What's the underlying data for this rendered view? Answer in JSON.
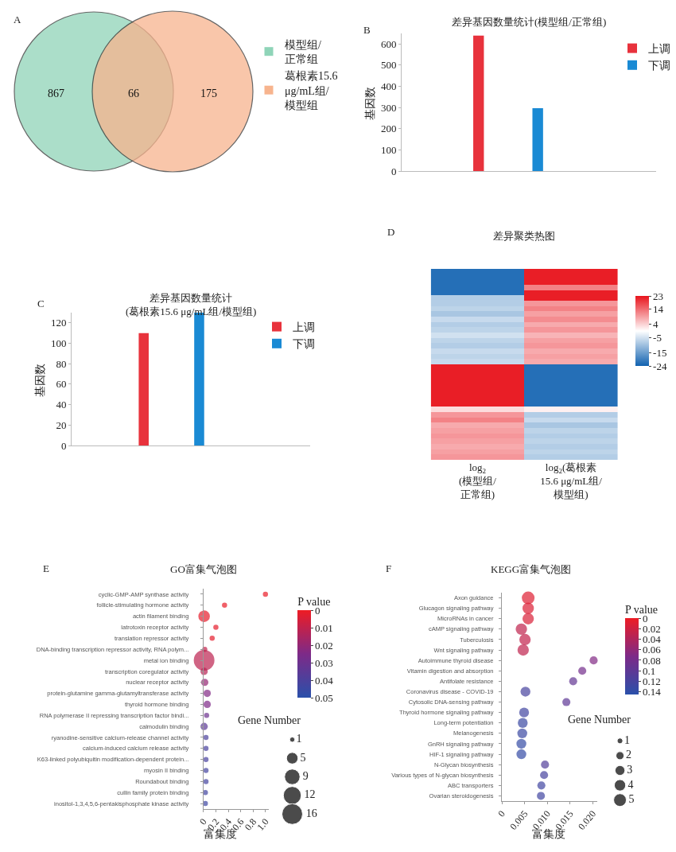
{
  "chart_data": [
    {
      "type": "other",
      "annotations": [
        "A",
        "867",
        "66",
        "175"
      ],
      "legend": "right",
      "series": [
        {
          "name": "模型组/\n正常组",
          "color": "#8fd4b8"
        },
        {
          "name": "葛根素15.6\nμg/mL组/\n模型组",
          "color": "#f7b48e"
        }
      ]
    },
    {
      "type": "bar",
      "title": "差异基因数量统计(模型组/正常组)",
      "annotations": [
        "B"
      ],
      "ylabel": "基因数",
      "categories": [
        null,
        null
      ],
      "series": [
        {
          "name": "上调",
          "color": "#e8323c",
          "values": [
            640,
            null
          ]
        },
        {
          "name": "下调",
          "color": "#1a8ad4",
          "values": [
            null,
            297
          ]
        }
      ],
      "ylim": [
        0,
        650
      ],
      "yticks": [
        0,
        100,
        200,
        300,
        400,
        500,
        600
      ],
      "tick_labels": "y",
      "legend": "top right"
    },
    {
      "type": "bar",
      "title": "差异基因数量统计\n(葛根素15.6 μg/mL组/模型组)",
      "annotations": [
        "C"
      ],
      "ylabel": "基因数",
      "categories": [
        null,
        null
      ],
      "series": [
        {
          "name": "上调",
          "color": "#e8323c",
          "values": [
            110,
            null
          ]
        },
        {
          "name": "下调",
          "color": "#1a8ad4",
          "values": [
            null,
            130
          ]
        }
      ],
      "ylim": [
        0,
        130
      ],
      "yticks": [
        0,
        20,
        40,
        60,
        80,
        100,
        120
      ],
      "tick_labels": "y",
      "legend": "top right"
    },
    {
      "type": "heatmap",
      "title": "差异聚类热图",
      "annotations": [
        "D"
      ],
      "categories": [
        "log$_{2}$\n(模型组/\n正常组)",
        "log$_{2}$(葛根素\n15.6 μg/mL组/\n模型组)"
      ],
      "y_categories": [
        null,
        null,
        null,
        null,
        null,
        null,
        null,
        null,
        null,
        null,
        null,
        null,
        null,
        null,
        null,
        null,
        null,
        null,
        null,
        null,
        null,
        null,
        null,
        null,
        null,
        null,
        null,
        null,
        null,
        null,
        null,
        null,
        null,
        null,
        null,
        null
      ],
      "cells": [
        [
          -22,
          22
        ],
        [
          -22,
          22
        ],
        [
          -22,
          22
        ],
        [
          -22,
          12
        ],
        [
          -22,
          22
        ],
        [
          -8,
          22
        ],
        [
          -8,
          10
        ],
        [
          -7,
          12
        ],
        [
          -9,
          9
        ],
        [
          -6,
          11
        ],
        [
          -8,
          8
        ],
        [
          -7,
          10
        ],
        [
          -5,
          7
        ],
        [
          -7,
          9
        ],
        [
          -8,
          10
        ],
        [
          -6,
          8
        ],
        [
          -7,
          9
        ],
        [
          -6,
          8
        ],
        [
          22,
          -22
        ],
        [
          22,
          -22
        ],
        [
          22,
          -22
        ],
        [
          22,
          -22
        ],
        [
          22,
          -22
        ],
        [
          22,
          -22
        ],
        [
          22,
          -22
        ],
        [
          22,
          -22
        ],
        [
          3,
          1
        ],
        [
          10,
          -8
        ],
        [
          12,
          -6
        ],
        [
          8,
          -9
        ],
        [
          9,
          -7
        ],
        [
          10,
          -8
        ],
        [
          9,
          -7
        ],
        [
          8,
          -8
        ],
        [
          9,
          -7
        ],
        [
          10,
          -8
        ]
      ],
      "clim": [
        -24,
        23
      ],
      "cticks": [
        23,
        14,
        4,
        -5,
        -15,
        -24
      ],
      "tick_labels": "x"
    },
    {
      "type": "bubble",
      "title": "GO富集气泡图",
      "annotations": [
        "E"
      ],
      "xlabel": "富集度",
      "clabel": "P value",
      "legend_title": "Gene Number",
      "categories": [
        "cyclic-GMP-AMP synthase activity",
        "follicle-stimulating hormone activity",
        "actin filament binding",
        "latrotoxin receptor activity",
        "translation repressor activity",
        "DNA-binding transcription repressor activity, RNA polym...",
        "metal ion binding",
        "transcription coregulator activity",
        "nuclear receptor activity",
        "protein-glutamine gamma-glutamyltransferase activity",
        "thyroid hormone binding",
        "RNA polymerase II repressing transcription factor bindi...",
        "calmodulin binding",
        "ryanodine-sensitive calcium-release channel activity",
        "calcium-induced calcium release activity",
        "K63-linked polyubiquitin modification-dependent protein...",
        "myosin II binding",
        "Roundabout binding",
        "cullin family protein binding",
        "inositol-1,3,4,5,6-pentakisphosphate kinase activity"
      ],
      "values": [
        1.0,
        0.34,
        0.01,
        0.2,
        0.14,
        0.02,
        0.01,
        0.01,
        0.02,
        0.06,
        0.06,
        0.05,
        0.01,
        0.04,
        0.04,
        0.04,
        0.04,
        0.04,
        0.03,
        0.03
      ],
      "sizes": [
        1,
        1,
        5,
        1,
        1,
        1,
        16,
        2,
        2,
        2,
        2,
        1,
        2,
        1,
        1,
        1,
        1,
        1,
        1,
        1
      ],
      "cvalues": [
        0.001,
        0.001,
        0.002,
        0.002,
        0.002,
        0.01,
        0.011,
        0.012,
        0.02,
        0.024,
        0.025,
        0.03,
        0.035,
        0.04,
        0.041,
        0.041,
        0.042,
        0.042,
        0.043,
        0.044
      ],
      "size_legend": [
        1,
        5,
        9,
        12,
        16
      ],
      "clim": [
        0,
        0.05
      ],
      "cticks": [
        0,
        0.01,
        0.02,
        0.03,
        0.04,
        0.05
      ],
      "orientation": "horizontal",
      "xlim": [
        0,
        1.05
      ],
      "xticks": [
        0,
        0.2,
        0.4,
        0.6,
        0.8,
        {
          "value": 1,
          "label": "1.0"
        }
      ]
    },
    {
      "type": "bubble",
      "title": "KEGG富集气泡图",
      "annotations": [
        "F"
      ],
      "xlabel": "富集度",
      "clabel": "P value",
      "legend_title": "Gene Number",
      "categories": [
        "Axon guidance",
        "Glucagon signaling pathway",
        "MicroRNAs in cancer",
        "cAMP signaling pathway",
        "Tuberculosis",
        "Wnt signaling pathway",
        "Autoimmune thyroid disease",
        "Vitamin digestion and absorption",
        "Antifolate resistance",
        "Coronavirus disease - COVID-19",
        "Cytosolic DNA-sensing pathway",
        "Thyroid hormone signaling pathway",
        "Long-term potentiation",
        "Melanogenesis",
        "GnRH signaling pathway",
        "HIF-1 signaling pathway",
        "N-Glycan biosynthesis",
        "Various types of N-glycan biosynthesis",
        "ABC transporters",
        "Ovarian steroidogenesis"
      ],
      "values": [
        0.0058,
        0.0058,
        0.0058,
        0.0043,
        0.0051,
        0.0047,
        0.0202,
        0.0177,
        0.0157,
        0.0052,
        0.0142,
        0.0049,
        0.0046,
        0.0045,
        0.0043,
        0.0043,
        0.0095,
        0.0093,
        0.0087,
        0.0086
      ],
      "sizes": [
        5,
        4,
        4,
        4,
        4,
        4,
        2,
        2,
        2,
        3,
        2,
        3,
        3,
        3,
        3,
        3,
        2,
        2,
        2,
        2
      ],
      "cvalues": [
        0.01,
        0.012,
        0.014,
        0.03,
        0.028,
        0.03,
        0.07,
        0.08,
        0.095,
        0.12,
        0.1,
        0.125,
        0.13,
        0.13,
        0.135,
        0.135,
        0.11,
        0.12,
        0.125,
        0.125
      ],
      "size_legend": [
        1,
        2,
        3,
        4,
        5
      ],
      "clim": [
        0,
        0.145
      ],
      "cticks": [
        0,
        0.02,
        0.04,
        0.06,
        0.08,
        0.1,
        0.12,
        0.14
      ],
      "orientation": "horizontal",
      "xlim": [
        0,
        0.021
      ],
      "xticks": [
        0,
        0.005,
        {
          "value": 0.01,
          "label": "0.010"
        },
        0.015,
        {
          "value": 0.02,
          "label": "0.020"
        }
      ]
    }
  ]
}
